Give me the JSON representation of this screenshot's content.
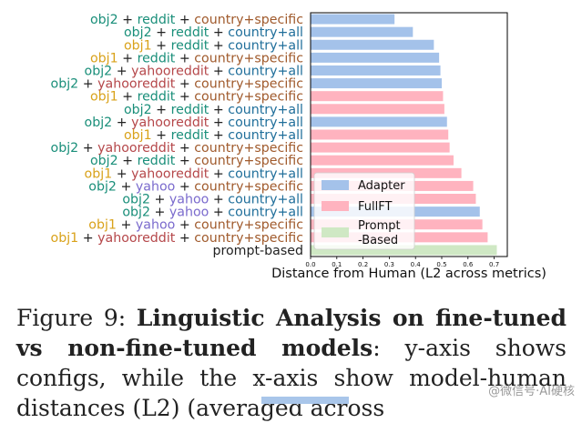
{
  "chart_data": {
    "type": "bar",
    "orientation": "horizontal",
    "xlabel": "Distance from Human (L2 across metrics)",
    "ylabel": "",
    "xlim": [
      0.0,
      0.75
    ],
    "xticks": [
      "0.0",
      "0.1",
      "0.2",
      "0.3",
      "0.4",
      "0.5",
      "0.6",
      "0.7"
    ],
    "grid": false,
    "legend": {
      "placement": "lower-left",
      "entries": [
        "Adapter",
        "FullFT",
        "Prompt\n-Based"
      ]
    },
    "colors": {
      "Adapter": "#a4c2ea",
      "FullFT": "#ffb3bf",
      "Prompt-Based": "#cfe8c4"
    },
    "label_colors": {
      "obj2": "#1a8f7a",
      "obj1": "#d9a21a",
      "reddit": "#1a8f7a",
      "yahoo": "#7a6acd",
      "yahooreddit": "#b5474a",
      "country+specific": "#a05a2c",
      "country+all": "#1f6e9a",
      "plus": "#222222",
      "prompt-based": "#222222"
    },
    "bars": [
      {
        "label_parts": [
          "obj2",
          " + ",
          "reddit",
          " + ",
          "country+specific"
        ],
        "label_keys": [
          "obj2",
          "plus",
          "reddit",
          "plus",
          "country+specific"
        ],
        "value": 0.32,
        "method": "Adapter"
      },
      {
        "label_parts": [
          "obj2",
          " + ",
          "reddit",
          " + ",
          "country+all"
        ],
        "label_keys": [
          "obj2",
          "plus",
          "reddit",
          "plus",
          "country+all"
        ],
        "value": 0.39,
        "method": "Adapter"
      },
      {
        "label_parts": [
          "obj1",
          " + ",
          "reddit",
          " + ",
          "country+all"
        ],
        "label_keys": [
          "obj1",
          "plus",
          "reddit",
          "plus",
          "country+all"
        ],
        "value": 0.47,
        "method": "Adapter"
      },
      {
        "label_parts": [
          "obj1",
          " + ",
          "reddit",
          " + ",
          "country+specific"
        ],
        "label_keys": [
          "obj1",
          "plus",
          "reddit",
          "plus",
          "country+specific"
        ],
        "value": 0.49,
        "method": "Adapter"
      },
      {
        "label_parts": [
          "obj2",
          " + ",
          "yahooreddit",
          " + ",
          "country+all"
        ],
        "label_keys": [
          "obj2",
          "plus",
          "yahooreddit",
          "plus",
          "country+all"
        ],
        "value": 0.495,
        "method": "Adapter"
      },
      {
        "label_parts": [
          "obj2",
          " + ",
          "yahooreddit",
          " + ",
          "country+specific"
        ],
        "label_keys": [
          "obj2",
          "plus",
          "yahooreddit",
          "plus",
          "country+specific"
        ],
        "value": 0.5,
        "method": "Adapter"
      },
      {
        "label_parts": [
          "obj1",
          " + ",
          "reddit",
          " + ",
          "country+specific"
        ],
        "label_keys": [
          "obj1",
          "plus",
          "reddit",
          "plus",
          "country+specific"
        ],
        "value": 0.505,
        "method": "FullFT"
      },
      {
        "label_parts": [
          "obj2",
          " + ",
          "reddit",
          " + ",
          "country+all"
        ],
        "label_keys": [
          "obj2",
          "plus",
          "reddit",
          "plus",
          "country+all"
        ],
        "value": 0.51,
        "method": "FullFT"
      },
      {
        "label_parts": [
          "obj2",
          " + ",
          "yahooreddit",
          " + ",
          "country+all"
        ],
        "label_keys": [
          "obj2",
          "plus",
          "yahooreddit",
          "plus",
          "country+all"
        ],
        "value": 0.52,
        "method": "Adapter"
      },
      {
        "label_parts": [
          "obj1",
          " + ",
          "reddit",
          " + ",
          "country+all"
        ],
        "label_keys": [
          "obj1",
          "plus",
          "reddit",
          "plus",
          "country+all"
        ],
        "value": 0.525,
        "method": "FullFT"
      },
      {
        "label_parts": [
          "obj2",
          " + ",
          "yahooreddit",
          " + ",
          "country+specific"
        ],
        "label_keys": [
          "obj2",
          "plus",
          "yahooreddit",
          "plus",
          "country+specific"
        ],
        "value": 0.53,
        "method": "FullFT"
      },
      {
        "label_parts": [
          "obj2",
          " + ",
          "reddit",
          " + ",
          "country+specific"
        ],
        "label_keys": [
          "obj2",
          "plus",
          "reddit",
          "plus",
          "country+specific"
        ],
        "value": 0.545,
        "method": "FullFT"
      },
      {
        "label_parts": [
          "obj1",
          " + ",
          "yahooreddit",
          " + ",
          "country+all"
        ],
        "label_keys": [
          "obj1",
          "plus",
          "yahooreddit",
          "plus",
          "country+all"
        ],
        "value": 0.575,
        "method": "FullFT"
      },
      {
        "label_parts": [
          "obj2",
          " + ",
          "yahoo",
          " + ",
          "country+specific"
        ],
        "label_keys": [
          "obj2",
          "plus",
          "yahoo",
          "plus",
          "country+specific"
        ],
        "value": 0.62,
        "method": "FullFT"
      },
      {
        "label_parts": [
          "obj2",
          " + ",
          "yahoo",
          " + ",
          "country+all"
        ],
        "label_keys": [
          "obj2",
          "plus",
          "yahoo",
          "plus",
          "country+all"
        ],
        "value": 0.63,
        "method": "FullFT"
      },
      {
        "label_parts": [
          "obj2",
          " + ",
          "yahoo",
          " + ",
          "country+all"
        ],
        "label_keys": [
          "obj2",
          "plus",
          "yahoo",
          "plus",
          "country+all"
        ],
        "value": 0.645,
        "method": "Adapter"
      },
      {
        "label_parts": [
          "obj1",
          " + ",
          "yahoo",
          " + ",
          "country+specific"
        ],
        "label_keys": [
          "obj1",
          "plus",
          "yahoo",
          "plus",
          "country+specific"
        ],
        "value": 0.655,
        "method": "FullFT"
      },
      {
        "label_parts": [
          "obj1",
          " + ",
          "yahooreddit",
          " + ",
          "country+specific"
        ],
        "label_keys": [
          "obj1",
          "plus",
          "yahooreddit",
          "plus",
          "country+specific"
        ],
        "value": 0.675,
        "method": "FullFT"
      },
      {
        "label_parts": [
          "prompt-based"
        ],
        "label_keys": [
          "prompt-based"
        ],
        "value": 0.71,
        "method": "Prompt-Based"
      }
    ]
  },
  "caption": {
    "figure_label": "Figure 9: ",
    "bold_title": "Linguistic Analysis on fine-tuned vs non-fine-tuned models",
    "body": ": y-axis shows configs, while the x-axis show model-human distances (L2) (averaged across"
  },
  "watermark": "@微信号·AI硬核"
}
